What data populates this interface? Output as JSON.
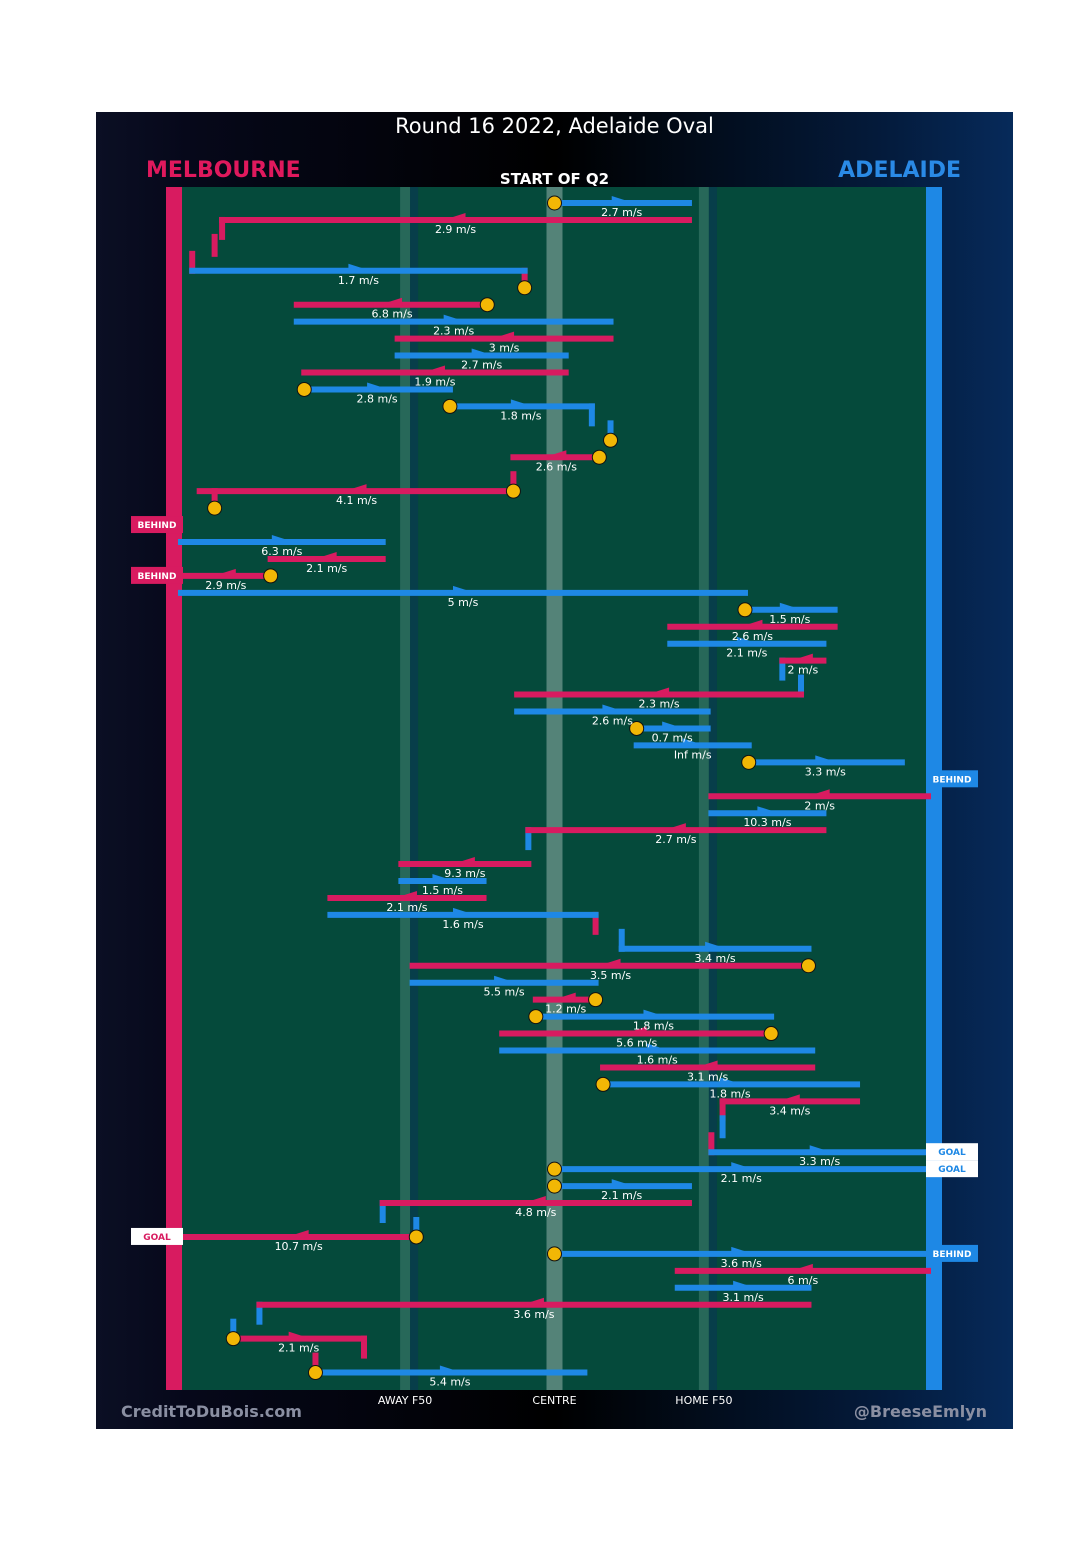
{
  "title": "Round 16 2022, Adelaide Oval",
  "home_team": "MELBOURNE",
  "away_team": "ADELAIDE",
  "period": "START OF Q2",
  "credit_left": "CreditToDuBois.com",
  "credit_right": "@BreeseEmlyn",
  "colors": {
    "melbourne": "#d81b60",
    "adelaide": "#1e88e5",
    "field": "#054a3b",
    "marker": "#f2b705"
  },
  "chart_data": {
    "type": "chain",
    "title": "Round 16 2022, Adelaide Oval",
    "x_ticks": [
      {
        "x": 0.3,
        "label": "AWAY F50"
      },
      {
        "x": 0.5,
        "label": "CENTRE"
      },
      {
        "x": 0.7,
        "label": "HOME F50"
      }
    ],
    "xlim": [
      0,
      1
    ],
    "segments": [
      {
        "team": "adelaide",
        "x1": 0.5,
        "x2": 0.68,
        "t": 0,
        "speed": "2.7 m/s",
        "start": true
      },
      {
        "team": "melbourne",
        "x1": 0.68,
        "x2": 0.055,
        "t": 1,
        "speed": "2.9 m/s"
      },
      {
        "team": "adelaide",
        "x1": 0.015,
        "x2": 0.46,
        "t": 4,
        "speed": "1.7 m/s"
      },
      {
        "team": "melbourne",
        "x1": 0.41,
        "x2": 0.155,
        "t": 6,
        "speed": "6.8 m/s",
        "start": true
      },
      {
        "team": "adelaide",
        "x1": 0.155,
        "x2": 0.575,
        "t": 7,
        "speed": "2.3 m/s"
      },
      {
        "team": "melbourne",
        "x1": 0.575,
        "x2": 0.29,
        "t": 8,
        "speed": "3 m/s"
      },
      {
        "team": "adelaide",
        "x1": 0.29,
        "x2": 0.515,
        "t": 9,
        "speed": "2.7 m/s"
      },
      {
        "team": "melbourne",
        "x1": 0.515,
        "x2": 0.165,
        "t": 10,
        "speed": "1.9 m/s"
      },
      {
        "team": "adelaide",
        "x1": 0.165,
        "x2": 0.36,
        "t": 11,
        "speed": "2.8 m/s",
        "start": true
      },
      {
        "team": "adelaide",
        "x1": 0.36,
        "x2": 0.55,
        "t": 12,
        "speed": "1.8 m/s",
        "start": true
      },
      {
        "team": "melbourne",
        "x1": 0.56,
        "x2": 0.445,
        "t": 15,
        "speed": "2.6 m/s",
        "start": true
      },
      {
        "team": "melbourne",
        "x1": 0.445,
        "x2": 0.025,
        "t": 17,
        "speed": "4.1 m/s",
        "start": true
      },
      {
        "team": "adelaide",
        "x1": 0.0,
        "x2": 0.27,
        "t": 20,
        "speed": "6.3 m/s"
      },
      {
        "team": "melbourne",
        "x1": 0.27,
        "x2": 0.12,
        "t": 21,
        "speed": "2.1 m/s"
      },
      {
        "team": "melbourne",
        "x1": 0.12,
        "x2": 0.0,
        "t": 22,
        "speed": "2.9 m/s",
        "start": true
      },
      {
        "team": "adelaide",
        "x1": 0.0,
        "x2": 0.755,
        "t": 23,
        "speed": "5 m/s"
      },
      {
        "team": "adelaide",
        "x1": 0.755,
        "x2": 0.875,
        "t": 24,
        "speed": "1.5 m/s",
        "start": true
      },
      {
        "team": "melbourne",
        "x1": 0.875,
        "x2": 0.655,
        "t": 25,
        "speed": "2.6 m/s"
      },
      {
        "team": "adelaide",
        "x1": 0.655,
        "x2": 0.86,
        "t": 26,
        "speed": "2.1 m/s"
      },
      {
        "team": "melbourne",
        "x1": 0.86,
        "x2": 0.805,
        "t": 27,
        "speed": "2 m/s"
      },
      {
        "team": "melbourne",
        "x1": 0.83,
        "x2": 0.45,
        "t": 29,
        "speed": "2.3 m/s"
      },
      {
        "team": "adelaide",
        "x1": 0.45,
        "x2": 0.705,
        "t": 30,
        "speed": "2.6 m/s"
      },
      {
        "team": "adelaide",
        "x1": 0.61,
        "x2": 0.705,
        "t": 31,
        "speed": "0.7 m/s",
        "start": true
      },
      {
        "team": "adelaide",
        "x1": 0.61,
        "x2": 0.76,
        "t": 32,
        "speed": "Inf m/s"
      },
      {
        "team": "adelaide",
        "x1": 0.76,
        "x2": 0.965,
        "t": 33,
        "speed": "3.3 m/s",
        "start": true
      },
      {
        "team": "melbourne",
        "x1": 1.0,
        "x2": 0.71,
        "t": 35,
        "speed": "2 m/s"
      },
      {
        "team": "adelaide",
        "x1": 0.71,
        "x2": 0.86,
        "t": 36,
        "speed": "10.3 m/s"
      },
      {
        "team": "melbourne",
        "x1": 0.86,
        "x2": 0.465,
        "t": 37,
        "speed": "2.7 m/s"
      },
      {
        "team": "melbourne",
        "x1": 0.465,
        "x2": 0.295,
        "t": 39,
        "speed": "9.3 m/s"
      },
      {
        "team": "adelaide",
        "x1": 0.295,
        "x2": 0.405,
        "t": 40,
        "speed": "1.5 m/s"
      },
      {
        "team": "melbourne",
        "x1": 0.405,
        "x2": 0.2,
        "t": 41,
        "speed": "2.1 m/s"
      },
      {
        "team": "adelaide",
        "x1": 0.2,
        "x2": 0.555,
        "t": 42,
        "speed": "1.6 m/s"
      },
      {
        "team": "adelaide",
        "x1": 0.59,
        "x2": 0.84,
        "t": 44,
        "speed": "3.4 m/s"
      },
      {
        "team": "melbourne",
        "x1": 0.84,
        "x2": 0.31,
        "t": 45,
        "speed": "3.5 m/s",
        "start": true
      },
      {
        "team": "adelaide",
        "x1": 0.31,
        "x2": 0.555,
        "t": 46,
        "speed": "5.5 m/s"
      },
      {
        "team": "melbourne",
        "x1": 0.555,
        "x2": 0.475,
        "t": 47,
        "speed": "1.2 m/s",
        "start": true
      },
      {
        "team": "adelaide",
        "x1": 0.475,
        "x2": 0.79,
        "t": 48,
        "speed": "1.8 m/s",
        "start": true
      },
      {
        "team": "melbourne",
        "x1": 0.79,
        "x2": 0.43,
        "t": 49,
        "speed": "5.6 m/s",
        "start": true
      },
      {
        "team": "adelaide",
        "x1": 0.43,
        "x2": 0.845,
        "t": 50,
        "speed": "1.6 m/s"
      },
      {
        "team": "melbourne",
        "x1": 0.845,
        "x2": 0.565,
        "t": 51,
        "speed": "3.1 m/s"
      },
      {
        "team": "adelaide",
        "x1": 0.565,
        "x2": 0.905,
        "t": 52,
        "speed": "1.8 m/s",
        "start": true
      },
      {
        "team": "melbourne",
        "x1": 0.905,
        "x2": 0.725,
        "t": 53,
        "speed": "3.4 m/s"
      },
      {
        "team": "adelaide",
        "x1": 0.71,
        "x2": 1.0,
        "t": 56,
        "speed": "3.3 m/s"
      },
      {
        "team": "adelaide",
        "x1": 0.5,
        "x2": 1.0,
        "t": 57,
        "speed": "2.1 m/s",
        "start": true
      },
      {
        "team": "adelaide",
        "x1": 0.5,
        "x2": 0.68,
        "t": 58,
        "speed": "2.1 m/s",
        "start": true
      },
      {
        "team": "melbourne",
        "x1": 0.68,
        "x2": 0.27,
        "t": 59,
        "speed": "4.8 m/s"
      },
      {
        "team": "melbourne",
        "x1": 0.315,
        "x2": 0.0,
        "t": 61,
        "speed": "10.7 m/s",
        "start": true
      },
      {
        "team": "adelaide",
        "x1": 0.5,
        "x2": 1.0,
        "t": 62,
        "speed": "3.6 m/s",
        "start": true
      },
      {
        "team": "melbourne",
        "x1": 1.0,
        "x2": 0.665,
        "t": 63,
        "speed": "6 m/s"
      },
      {
        "team": "adelaide",
        "x1": 0.665,
        "x2": 0.84,
        "t": 64,
        "speed": "3.1 m/s"
      },
      {
        "team": "melbourne",
        "x1": 0.84,
        "x2": 0.105,
        "t": 65,
        "speed": "3.6 m/s"
      },
      {
        "team": "melbourne",
        "x1": 0.07,
        "x2": 0.245,
        "t": 67,
        "speed": "2.1 m/s",
        "start": true
      },
      {
        "team": "adelaide",
        "x1": 0.18,
        "x2": 0.54,
        "t": 69,
        "speed": "5.4 m/s",
        "start": true
      }
    ],
    "connectors": [
      {
        "team": "melbourne",
        "x": 0.055,
        "t1": 1,
        "t2": 2
      },
      {
        "team": "melbourne",
        "x": 0.045,
        "t1": 2,
        "t2": 3
      },
      {
        "team": "melbourne",
        "x": 0.015,
        "t1": 3,
        "t2": 4
      },
      {
        "team": "melbourne",
        "x": 0.46,
        "t1": 4,
        "t2": 5
      },
      {
        "team": "adelaide",
        "x": 0.55,
        "t1": 12,
        "t2": 13
      },
      {
        "team": "adelaide",
        "x": 0.575,
        "t1": 13,
        "t2": 14
      },
      {
        "team": "melbourne",
        "x": 0.445,
        "t1": 16,
        "t2": 17
      },
      {
        "team": "melbourne",
        "x": 0.045,
        "t1": 17,
        "t2": 18
      },
      {
        "team": "adelaide",
        "x": 0.805,
        "t1": 27,
        "t2": 28
      },
      {
        "team": "adelaide",
        "x": 0.83,
        "t1": 28,
        "t2": 29
      },
      {
        "team": "adelaide",
        "x": 0.465,
        "t1": 37,
        "t2": 38
      },
      {
        "team": "melbourne",
        "x": 0.555,
        "t1": 42,
        "t2": 43
      },
      {
        "team": "adelaide",
        "x": 0.59,
        "t1": 43,
        "t2": 44
      },
      {
        "team": "melbourne",
        "x": 0.725,
        "t1": 53,
        "t2": 54
      },
      {
        "team": "adelaide",
        "x": 0.725,
        "t1": 54,
        "t2": 55
      },
      {
        "team": "melbourne",
        "x": 0.71,
        "t1": 55,
        "t2": 56
      },
      {
        "team": "adelaide",
        "x": 0.27,
        "t1": 59,
        "t2": 60
      },
      {
        "team": "adelaide",
        "x": 0.315,
        "t1": 60,
        "t2": 61
      },
      {
        "team": "adelaide",
        "x": 0.105,
        "t1": 65,
        "t2": 66
      },
      {
        "team": "adelaide",
        "x": 0.07,
        "t1": 66,
        "t2": 67
      },
      {
        "team": "melbourne",
        "x": 0.245,
        "t1": 67,
        "t2": 68
      },
      {
        "team": "melbourne",
        "x": 0.18,
        "t1": 68,
        "t2": 69
      }
    ],
    "extra_markers": [
      {
        "x": 0.46,
        "t": 5
      },
      {
        "x": 0.575,
        "t": 14
      },
      {
        "x": 0.045,
        "t": 18
      }
    ],
    "scores": [
      {
        "team": "melbourne",
        "result": "BEHIND",
        "t": 19
      },
      {
        "team": "melbourne",
        "result": "BEHIND",
        "t": 22
      },
      {
        "team": "adelaide",
        "result": "BEHIND",
        "t": 34
      },
      {
        "team": "adelaide",
        "result": "GOAL",
        "t": 56
      },
      {
        "team": "adelaide",
        "result": "GOAL",
        "t": 57
      },
      {
        "team": "melbourne",
        "result": "GOAL",
        "t": 61
      },
      {
        "team": "adelaide",
        "result": "BEHIND",
        "t": 62
      }
    ]
  }
}
